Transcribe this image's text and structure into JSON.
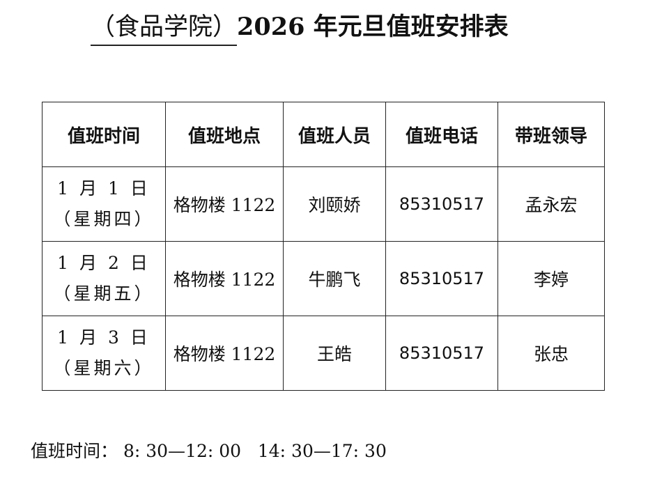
{
  "title": {
    "org": "（食品学院）",
    "main": "2026 年元旦值班安排表"
  },
  "table": {
    "headers": [
      "值班时间",
      "值班地点",
      "值班人员",
      "值班电话",
      "带班领导"
    ],
    "rows": [
      {
        "date": "1 月 1 日",
        "weekday": "（星期四）",
        "location": "格物楼 1122",
        "staff": "刘颐娇",
        "phone": "85310517",
        "leader": "孟永宏"
      },
      {
        "date": "1 月 2 日",
        "weekday": "（星期五）",
        "location": "格物楼 1122",
        "staff": "牛鹏飞",
        "phone": "85310517",
        "leader": "李婷"
      },
      {
        "date": "1 月 3 日",
        "weekday": "（星期六）",
        "location": "格物楼 1122",
        "staff": "王皓",
        "phone": "85310517",
        "leader": "张忠"
      }
    ]
  },
  "footer": {
    "text": "值班时间： 8: 30—12: 00   14: 30—17: 30"
  }
}
